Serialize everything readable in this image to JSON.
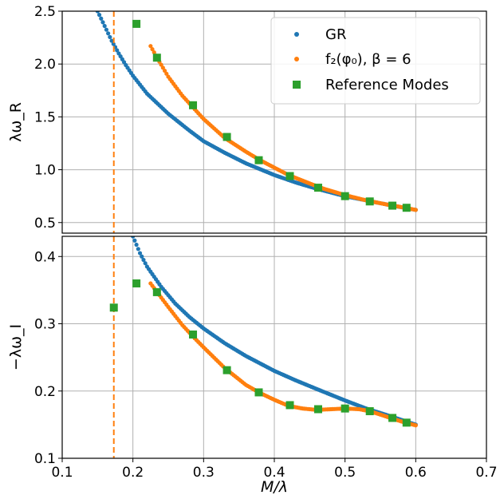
{
  "chart_data": {
    "type": "scatter",
    "xlabel": "M/λ",
    "xlim": [
      0.1,
      0.7
    ],
    "xticks": [
      "0.1",
      "0.2",
      "0.3",
      "0.4",
      "0.5",
      "0.6",
      "0.7"
    ],
    "grid": true,
    "legend_placement": "top-right",
    "legend": [
      {
        "key": "gr",
        "label": "GR"
      },
      {
        "key": "f2",
        "label": "f₂(φ₀),  β = 6"
      },
      {
        "key": "ref",
        "label": "Reference Modes"
      }
    ],
    "colors": {
      "gr": "#1f77b4",
      "f2": "#ff7f0e",
      "ref": "#2ca02c"
    },
    "vline_x": 0.173,
    "panels": [
      {
        "id": "top",
        "ylabel": "λω_R",
        "ylim": [
          0.4,
          2.5
        ],
        "yticks": [
          "0.5",
          "1.0",
          "1.5",
          "2.0",
          "2.5"
        ],
        "yticks_values": [
          0.5,
          1.0,
          1.5,
          2.0,
          2.5
        ],
        "gr": {
          "x": [
            0.15,
            0.16,
            0.17,
            0.18,
            0.19,
            0.2,
            0.22,
            0.25,
            0.28,
            0.3,
            0.33,
            0.36,
            0.4,
            0.43,
            0.46,
            0.5,
            0.53,
            0.56,
            0.6
          ],
          "y": [
            2.5,
            2.36,
            2.22,
            2.1,
            1.99,
            1.89,
            1.72,
            1.53,
            1.37,
            1.27,
            1.16,
            1.06,
            0.95,
            0.88,
            0.82,
            0.75,
            0.71,
            0.67,
            0.62
          ]
        },
        "f2": {
          "x": [
            0.225,
            0.235,
            0.25,
            0.27,
            0.285,
            0.3,
            0.33,
            0.36,
            0.38,
            0.4,
            0.42,
            0.45,
            0.47,
            0.5,
            0.53,
            0.56,
            0.585,
            0.6
          ],
          "y": [
            2.17,
            2.05,
            1.88,
            1.7,
            1.59,
            1.48,
            1.3,
            1.17,
            1.09,
            1.02,
            0.95,
            0.87,
            0.82,
            0.76,
            0.71,
            0.67,
            0.64,
            0.62
          ]
        },
        "ref": {
          "x": [
            0.205,
            0.234,
            0.285,
            0.333,
            0.378,
            0.422,
            0.462,
            0.5,
            0.535,
            0.567,
            0.587
          ],
          "y": [
            2.38,
            2.06,
            1.61,
            1.31,
            1.09,
            0.94,
            0.83,
            0.75,
            0.7,
            0.66,
            0.64
          ]
        }
      },
      {
        "id": "bottom",
        "ylabel": "−λω_I",
        "ylim": [
          0.1,
          0.43
        ],
        "yticks": [
          "0.1",
          "0.2",
          "0.3",
          "0.4"
        ],
        "yticks_values": [
          0.1,
          0.2,
          0.3,
          0.4
        ],
        "gr": {
          "x": [
            0.2,
            0.21,
            0.22,
            0.24,
            0.26,
            0.28,
            0.3,
            0.33,
            0.36,
            0.4,
            0.43,
            0.46,
            0.5,
            0.53,
            0.56,
            0.6
          ],
          "y": [
            0.43,
            0.405,
            0.385,
            0.355,
            0.33,
            0.31,
            0.293,
            0.271,
            0.252,
            0.23,
            0.216,
            0.203,
            0.186,
            0.174,
            0.164,
            0.15
          ]
        },
        "f2": {
          "x": [
            0.225,
            0.235,
            0.25,
            0.27,
            0.285,
            0.3,
            0.33,
            0.36,
            0.38,
            0.4,
            0.42,
            0.44,
            0.46,
            0.48,
            0.5,
            0.52,
            0.535,
            0.55,
            0.567,
            0.585,
            0.6
          ],
          "y": [
            0.36,
            0.346,
            0.325,
            0.298,
            0.281,
            0.265,
            0.234,
            0.209,
            0.197,
            0.187,
            0.178,
            0.174,
            0.172,
            0.173,
            0.174,
            0.173,
            0.17,
            0.165,
            0.159,
            0.153,
            0.149
          ]
        },
        "ref": {
          "x": [
            0.173,
            0.205,
            0.234,
            0.285,
            0.333,
            0.378,
            0.422,
            0.462,
            0.5,
            0.535,
            0.567,
            0.587
          ],
          "y": [
            0.324,
            0.36,
            0.347,
            0.284,
            0.231,
            0.198,
            0.179,
            0.173,
            0.174,
            0.17,
            0.16,
            0.153
          ]
        }
      }
    ]
  }
}
